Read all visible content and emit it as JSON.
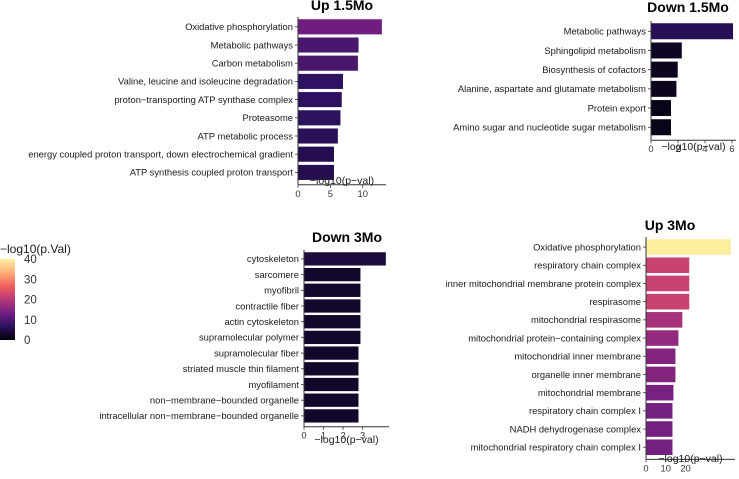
{
  "colorscale": {
    "title": "−log10(p.Val)",
    "ticks": [
      40,
      30,
      20,
      10,
      0
    ],
    "range": [
      0,
      40
    ],
    "stops": [
      "#000004",
      "#2c115f",
      "#721f81",
      "#b73779",
      "#f1605d",
      "#feb078",
      "#fcf0a0"
    ]
  },
  "chart_data": [
    {
      "type": "bar",
      "orientation": "horizontal",
      "title": "Up 1.5Mo",
      "xlabel": "−log10(p−val)",
      "xlim": [
        0,
        13.6
      ],
      "xticks": [
        0,
        5,
        10
      ],
      "categories": [
        "Oxidative phosphorylation",
        "Metabolic pathways",
        "Carbon metabolism",
        "Valine, leucine and isoleucine degradation",
        "proton−transporting ATP synthase complex",
        "Proteasome",
        "ATP metabolic process",
        "energy coupled proton transport, down electrochemical gradient",
        "ATP synthesis coupled proton transport"
      ],
      "values": [
        13.0,
        9.4,
        9.3,
        7.0,
        6.8,
        6.6,
        6.2,
        5.6,
        5.6
      ]
    },
    {
      "type": "bar",
      "orientation": "horizontal",
      "title": "Down 1.5Mo",
      "xlabel": "−log10(p−val)",
      "xlim": [
        0,
        6.3
      ],
      "xticks": [
        0,
        2,
        4,
        6
      ],
      "categories": [
        "Metabolic pathways",
        "Sphingolipid metabolism",
        "Biosynthesis of cofactors",
        "Alanine, aspartate and glutamate metabolism",
        "Protein export",
        "Amino sugar and nucleotide sugar metabolism"
      ],
      "values": [
        6.1,
        2.3,
        2.0,
        1.9,
        1.5,
        1.5
      ]
    },
    {
      "type": "bar",
      "orientation": "horizontal",
      "title": "Down 3Mo",
      "xlabel": "−log10(p−val)",
      "xlim": [
        0,
        4.35
      ],
      "xticks": [
        0,
        1,
        2,
        3
      ],
      "categories": [
        "cytoskeleton",
        "sarcomere",
        "myofibril",
        "contractile fiber",
        "actin cytoskeleton",
        "supramolecular polymer",
        "supramolecular fiber",
        "striated muscle thin filament",
        "myofilament",
        "non−membrane−bounded organelle",
        "intracellular non−membrane−bounded organelle"
      ],
      "values": [
        4.2,
        2.9,
        2.9,
        2.9,
        2.9,
        2.9,
        2.8,
        2.8,
        2.8,
        2.8,
        2.8
      ]
    },
    {
      "type": "bar",
      "orientation": "horizontal",
      "title": "Up 3Mo",
      "xlabel": "−log10(p−val)",
      "xlim": [
        0,
        45
      ],
      "xticks": [
        0,
        10,
        20
      ],
      "categories": [
        "Oxidative phosphorylation",
        "respiratory chain complex",
        "inner mitochondrial membrane protein complex",
        "respirasome",
        "mitochondrial respirasome",
        "mitochondrial protein−containing complex",
        "mitochondrial inner membrane",
        "organelle inner membrane",
        "mitochondrial membrane",
        "respiratory chain complex I",
        "NADH dehydrogenase complex",
        "mitochondrial respiratory chain complex I"
      ],
      "values": [
        43,
        22,
        22,
        22,
        18.5,
        16.5,
        15,
        15,
        14,
        13.5,
        13.5,
        13.5
      ]
    }
  ]
}
